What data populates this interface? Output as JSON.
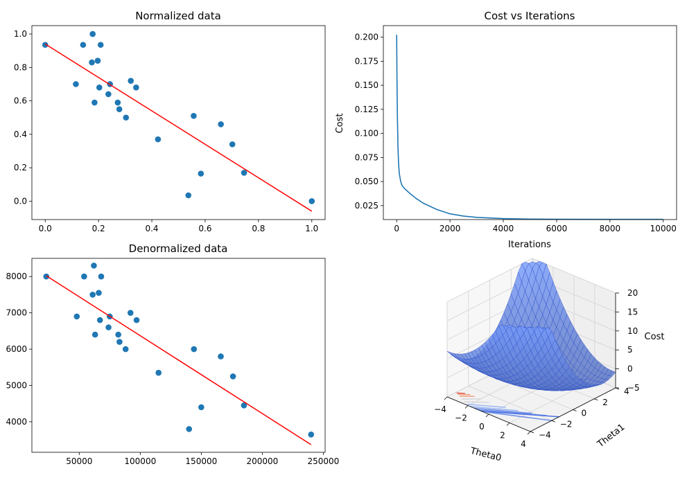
{
  "figure": {
    "background": "#ffffff"
  },
  "chart_data": [
    {
      "type": "scatter",
      "title": "Normalized data",
      "xlabel": "",
      "ylabel": "",
      "xlim": [
        -0.05,
        1.05
      ],
      "ylim": [
        -0.11,
        1.05
      ],
      "xticks": [
        0.0,
        0.2,
        0.4,
        0.6,
        0.8,
        1.0
      ],
      "xtick_labels": [
        "0.0",
        "0.2",
        "0.4",
        "0.6",
        "0.8",
        "1.0"
      ],
      "yticks": [
        0.0,
        0.2,
        0.4,
        0.6,
        0.8,
        1.0
      ],
      "ytick_labels": [
        "0.0",
        "0.2",
        "0.4",
        "0.6",
        "0.8",
        "1.0"
      ],
      "points": [
        [
          0.0,
          0.935
        ],
        [
          0.142,
          0.935
        ],
        [
          0.178,
          1.0
        ],
        [
          0.208,
          0.935
        ],
        [
          0.175,
          0.83
        ],
        [
          0.197,
          0.84
        ],
        [
          0.115,
          0.7
        ],
        [
          0.203,
          0.68
        ],
        [
          0.243,
          0.7
        ],
        [
          0.237,
          0.64
        ],
        [
          0.185,
          0.59
        ],
        [
          0.272,
          0.59
        ],
        [
          0.278,
          0.55
        ],
        [
          0.303,
          0.5
        ],
        [
          0.321,
          0.72
        ],
        [
          0.341,
          0.68
        ],
        [
          0.423,
          0.37
        ],
        [
          0.557,
          0.51
        ],
        [
          0.659,
          0.46
        ],
        [
          0.702,
          0.34
        ],
        [
          0.584,
          0.165
        ],
        [
          0.537,
          0.035
        ],
        [
          0.746,
          0.17
        ],
        [
          1.0,
          0.0
        ]
      ],
      "fit_line": [
        [
          0.0,
          0.94
        ],
        [
          1.0,
          -0.06
        ]
      ],
      "point_color": "#1f77b4",
      "line_color": "#ff0000"
    },
    {
      "type": "line",
      "title": "Cost vs Iterations",
      "xlabel": "Iterations",
      "ylabel": "Cost",
      "xlim": [
        -500,
        10500
      ],
      "ylim": [
        0.0105,
        0.212
      ],
      "xticks": [
        0,
        2000,
        4000,
        6000,
        8000,
        10000
      ],
      "xtick_labels": [
        "0",
        "2000",
        "4000",
        "6000",
        "8000",
        "10000"
      ],
      "yticks": [
        0.025,
        0.05,
        0.075,
        0.1,
        0.125,
        0.15,
        0.175,
        0.2
      ],
      "ytick_labels": [
        "0.025",
        "0.050",
        "0.075",
        "0.100",
        "0.125",
        "0.150",
        "0.175",
        "0.200"
      ],
      "x": [
        0,
        10,
        25,
        50,
        75,
        100,
        150,
        200,
        300,
        500,
        750,
        1000,
        1500,
        2000,
        2500,
        3000,
        4000,
        5000,
        6000,
        8000,
        10000
      ],
      "y": [
        0.2025,
        0.16,
        0.12,
        0.085,
        0.067,
        0.058,
        0.05,
        0.046,
        0.0425,
        0.0375,
        0.032,
        0.0275,
        0.021,
        0.0165,
        0.0142,
        0.0128,
        0.0115,
        0.011,
        0.0108,
        0.0107,
        0.0107
      ],
      "line_color": "#1f77b4"
    },
    {
      "type": "scatter",
      "title": "Denormalized data",
      "xlabel": "",
      "ylabel": "",
      "xlim": [
        11200,
        251500
      ],
      "ylim": [
        3160,
        8500
      ],
      "xticks": [
        50000,
        100000,
        150000,
        200000,
        250000
      ],
      "xtick_labels": [
        "50000",
        "100000",
        "150000",
        "200000",
        "250000"
      ],
      "yticks": [
        4000,
        5000,
        6000,
        7000,
        8000
      ],
      "ytick_labels": [
        "4000",
        "5000",
        "6000",
        "7000",
        "8000"
      ],
      "points": [
        [
          23000,
          8000
        ],
        [
          54000,
          8000
        ],
        [
          62000,
          8300
        ],
        [
          68000,
          8000
        ],
        [
          61000,
          7500
        ],
        [
          66000,
          7550
        ],
        [
          48000,
          6900
        ],
        [
          67000,
          6800
        ],
        [
          75000,
          6900
        ],
        [
          74000,
          6600
        ],
        [
          63000,
          6400
        ],
        [
          82000,
          6400
        ],
        [
          83000,
          6200
        ],
        [
          88000,
          6000
        ],
        [
          92000,
          7000
        ],
        [
          97000,
          6800
        ],
        [
          115000,
          5350
        ],
        [
          144000,
          6000
        ],
        [
          166000,
          5800
        ],
        [
          176000,
          5250
        ],
        [
          150000,
          4400
        ],
        [
          140000,
          3800
        ],
        [
          185000,
          4450
        ],
        [
          240000,
          3650
        ]
      ],
      "fit_line": [
        [
          23000,
          8020
        ],
        [
          240000,
          3370
        ]
      ],
      "point_color": "#1f77b4",
      "line_color": "#ff0000"
    },
    {
      "type": "surface",
      "title": "",
      "xlabel": "Theta0",
      "ylabel": "Theta1",
      "zlabel": "Cost",
      "xlim": [
        -4,
        4
      ],
      "ylim": [
        -4,
        4
      ],
      "zlim": [
        -5,
        20
      ],
      "xticks": [
        -4,
        -2,
        0,
        2,
        4
      ],
      "xtick_labels": [
        "−4",
        "−2",
        "0",
        "2",
        "4"
      ],
      "yticks": [
        -4,
        -2,
        0,
        2,
        4
      ],
      "ytick_labels": [
        "−4",
        "−2",
        "0",
        "2",
        "4"
      ],
      "zticks": [
        -5,
        0,
        5,
        10,
        15,
        20
      ],
      "ztick_labels": [
        "−5",
        "0",
        "5",
        "10",
        "15",
        "20"
      ],
      "surface_color": "#6d8fe8",
      "surface_edge_color": "#2c4fc8",
      "contour_colors": [
        "#4a6fe3",
        "#6d8fe8",
        "#9db9f5",
        "#d6d6dc",
        "#f0a080",
        "#e05a45"
      ]
    }
  ]
}
